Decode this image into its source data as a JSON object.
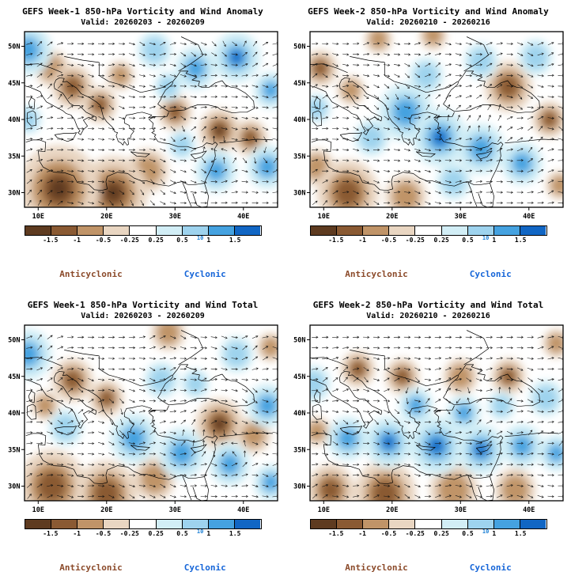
{
  "legend": {
    "anticyclonic": "Anticyclonic",
    "cyclonic": "Cyclonic"
  },
  "chart_data": [
    {
      "type": "heatmap",
      "title": "GEFS Week-1 850-hPa Vorticity and Wind Anomaly",
      "subtitle": "Valid: 20260203 - 20260209",
      "xlim": [
        8,
        45
      ],
      "ylim": [
        28,
        52
      ],
      "lon_ticks": [
        10,
        20,
        30,
        40
      ],
      "lon_tick_labels": [
        "10E",
        "20E",
        "30E",
        "40E"
      ],
      "lat_ticks": [
        30,
        35,
        40,
        45,
        50
      ],
      "lat_tick_labels": [
        "30N",
        "35N",
        "40N",
        "45N",
        "50N"
      ],
      "grid": false,
      "legend": [
        "Anticyclonic",
        "Cyclonic"
      ],
      "colorbar": {
        "tick_labels": [
          "-1.5",
          "-1",
          "-0.5",
          "-0.25",
          "0.25",
          "0.5",
          "1",
          "1.5"
        ],
        "scale_label": "10",
        "colors": [
          "#5e3b20",
          "#8a5a33",
          "#c09468",
          "#e9d6c2",
          "#ffffff",
          "#d2eef6",
          "#9ed3ee",
          "#45a2e0",
          "#1166c4"
        ]
      },
      "wind": {
        "style": "arrow-grid",
        "base_flow": "westerly"
      },
      "vorticity_centers": [
        {
          "lon": 13,
          "lat": 30.5,
          "radius_deg": 6,
          "intensity": 1.0,
          "rotation": "anticyclonic"
        },
        {
          "lon": 21,
          "lat": 30,
          "radius_deg": 5,
          "intensity": 0.9,
          "rotation": "anticyclonic"
        },
        {
          "lon": 26,
          "lat": 33,
          "radius_deg": 3,
          "intensity": 0.6,
          "rotation": "anticyclonic"
        },
        {
          "lon": 15,
          "lat": 44.5,
          "radius_deg": 3,
          "intensity": 0.85,
          "rotation": "anticyclonic"
        },
        {
          "lon": 19,
          "lat": 42,
          "radius_deg": 2.5,
          "intensity": 0.75,
          "rotation": "anticyclonic"
        },
        {
          "lon": 12,
          "lat": 47,
          "radius_deg": 2.5,
          "intensity": 0.6,
          "rotation": "anticyclonic"
        },
        {
          "lon": 22,
          "lat": 46,
          "radius_deg": 2,
          "intensity": 0.5,
          "rotation": "anticyclonic"
        },
        {
          "lon": 30,
          "lat": 41,
          "radius_deg": 2.5,
          "intensity": 0.7,
          "rotation": "anticyclonic"
        },
        {
          "lon": 36.5,
          "lat": 38.5,
          "radius_deg": 3,
          "intensity": 0.9,
          "rotation": "anticyclonic"
        },
        {
          "lon": 41,
          "lat": 37.5,
          "radius_deg": 2.5,
          "intensity": 0.7,
          "rotation": "anticyclonic"
        },
        {
          "lon": 8.5,
          "lat": 49.5,
          "radius_deg": 3.5,
          "intensity": 0.85,
          "rotation": "cyclonic"
        },
        {
          "lon": 8.5,
          "lat": 40,
          "radius_deg": 2,
          "intensity": 0.5,
          "rotation": "cyclonic"
        },
        {
          "lon": 27,
          "lat": 49.5,
          "radius_deg": 2.5,
          "intensity": 0.55,
          "rotation": "cyclonic"
        },
        {
          "lon": 33,
          "lat": 47,
          "radius_deg": 3,
          "intensity": 0.7,
          "rotation": "cyclonic"
        },
        {
          "lon": 39,
          "lat": 48.5,
          "radius_deg": 3.5,
          "intensity": 0.9,
          "rotation": "cyclonic"
        },
        {
          "lon": 44,
          "lat": 44,
          "radius_deg": 2.5,
          "intensity": 0.7,
          "rotation": "cyclonic"
        },
        {
          "lon": 43.5,
          "lat": 33.5,
          "radius_deg": 3,
          "intensity": 0.85,
          "rotation": "cyclonic"
        },
        {
          "lon": 36,
          "lat": 33,
          "radius_deg": 3,
          "intensity": 0.75,
          "rotation": "cyclonic"
        },
        {
          "lon": 31,
          "lat": 36.5,
          "radius_deg": 2,
          "intensity": 0.6,
          "rotation": "cyclonic"
        },
        {
          "lon": 29,
          "lat": 44.5,
          "radius_deg": 2,
          "intensity": 0.5,
          "rotation": "cyclonic"
        }
      ]
    },
    {
      "type": "heatmap",
      "title": "GEFS Week-2 850-hPa Vorticity and Wind Anomaly",
      "subtitle": "Valid: 20260210 - 20260216",
      "xlim": [
        8,
        45
      ],
      "ylim": [
        28,
        52
      ],
      "lon_ticks": [
        10,
        20,
        30,
        40
      ],
      "lon_tick_labels": [
        "10E",
        "20E",
        "30E",
        "40E"
      ],
      "lat_ticks": [
        30,
        35,
        40,
        45,
        50
      ],
      "lat_tick_labels": [
        "30N",
        "35N",
        "40N",
        "45N",
        "50N"
      ],
      "grid": false,
      "legend": [
        "Anticyclonic",
        "Cyclonic"
      ],
      "colorbar": {
        "tick_labels": [
          "-1.5",
          "-1",
          "-0.5",
          "-0.25",
          "0.25",
          "0.5",
          "1",
          "1.5"
        ],
        "scale_label": "10",
        "colors": [
          "#5e3b20",
          "#8a5a33",
          "#c09468",
          "#e9d6c2",
          "#ffffff",
          "#d2eef6",
          "#9ed3ee",
          "#45a2e0",
          "#1166c4"
        ]
      },
      "wind": {
        "style": "arrow-grid",
        "base_flow": "westerly"
      },
      "vorticity_centers": [
        {
          "lon": 9.5,
          "lat": 47,
          "radius_deg": 2.5,
          "intensity": 0.7,
          "rotation": "anticyclonic"
        },
        {
          "lon": 14,
          "lat": 44,
          "radius_deg": 2,
          "intensity": 0.5,
          "rotation": "anticyclonic"
        },
        {
          "lon": 13.5,
          "lat": 30,
          "radius_deg": 4.5,
          "intensity": 0.8,
          "rotation": "anticyclonic"
        },
        {
          "lon": 9,
          "lat": 33.5,
          "radius_deg": 2.5,
          "intensity": 0.6,
          "rotation": "anticyclonic"
        },
        {
          "lon": 22,
          "lat": 29.5,
          "radius_deg": 3,
          "intensity": 0.5,
          "rotation": "anticyclonic"
        },
        {
          "lon": 37,
          "lat": 44.5,
          "radius_deg": 3.5,
          "intensity": 0.85,
          "rotation": "anticyclonic"
        },
        {
          "lon": 43,
          "lat": 40,
          "radius_deg": 2.5,
          "intensity": 0.65,
          "rotation": "anticyclonic"
        },
        {
          "lon": 44.5,
          "lat": 31,
          "radius_deg": 2,
          "intensity": 0.5,
          "rotation": "anticyclonic"
        },
        {
          "lon": 26,
          "lat": 51.5,
          "radius_deg": 2,
          "intensity": 0.45,
          "rotation": "anticyclonic"
        },
        {
          "lon": 18,
          "lat": 51,
          "radius_deg": 2,
          "intensity": 0.4,
          "rotation": "anticyclonic"
        },
        {
          "lon": 22,
          "lat": 41,
          "radius_deg": 4,
          "intensity": 0.85,
          "rotation": "cyclonic"
        },
        {
          "lon": 27,
          "lat": 37.5,
          "radius_deg": 4,
          "intensity": 0.9,
          "rotation": "cyclonic"
        },
        {
          "lon": 33,
          "lat": 36,
          "radius_deg": 3.5,
          "intensity": 0.85,
          "rotation": "cyclonic"
        },
        {
          "lon": 39,
          "lat": 34,
          "radius_deg": 3,
          "intensity": 0.7,
          "rotation": "cyclonic"
        },
        {
          "lon": 17,
          "lat": 37.5,
          "radius_deg": 2.5,
          "intensity": 0.6,
          "rotation": "cyclonic"
        },
        {
          "lon": 29,
          "lat": 31.5,
          "radius_deg": 2.5,
          "intensity": 0.55,
          "rotation": "cyclonic"
        },
        {
          "lon": 9,
          "lat": 41.5,
          "radius_deg": 2,
          "intensity": 0.5,
          "rotation": "cyclonic"
        },
        {
          "lon": 33,
          "lat": 48,
          "radius_deg": 2.5,
          "intensity": 0.55,
          "rotation": "cyclonic"
        },
        {
          "lon": 41,
          "lat": 48.5,
          "radius_deg": 2.5,
          "intensity": 0.6,
          "rotation": "cyclonic"
        },
        {
          "lon": 25,
          "lat": 46,
          "radius_deg": 2.5,
          "intensity": 0.6,
          "rotation": "cyclonic"
        }
      ]
    },
    {
      "type": "heatmap",
      "title": "GEFS Week-1 850-hPa Vorticity and Wind Total",
      "subtitle": "Valid: 20260203 - 20260209",
      "xlim": [
        8,
        45
      ],
      "ylim": [
        28,
        52
      ],
      "lon_ticks": [
        10,
        20,
        30,
        40
      ],
      "lon_tick_labels": [
        "10E",
        "20E",
        "30E",
        "40E"
      ],
      "lat_ticks": [
        30,
        35,
        40,
        45,
        50
      ],
      "lat_tick_labels": [
        "30N",
        "35N",
        "40N",
        "45N",
        "50N"
      ],
      "grid": false,
      "legend": [
        "Anticyclonic",
        "Cyclonic"
      ],
      "colorbar": {
        "tick_labels": [
          "-1.5",
          "-1",
          "-0.5",
          "-0.25",
          "0.25",
          "0.5",
          "1",
          "1.5"
        ],
        "scale_label": "10",
        "colors": [
          "#5e3b20",
          "#8a5a33",
          "#c09468",
          "#e9d6c2",
          "#ffffff",
          "#d2eef6",
          "#9ed3ee",
          "#45a2e0",
          "#1166c4"
        ]
      },
      "wind": {
        "style": "arrow-grid",
        "base_flow": "westerly"
      },
      "vorticity_centers": [
        {
          "lon": 12,
          "lat": 30,
          "radius_deg": 5,
          "intensity": 0.85,
          "rotation": "anticyclonic"
        },
        {
          "lon": 20,
          "lat": 29,
          "radius_deg": 4.5,
          "intensity": 0.75,
          "rotation": "anticyclonic"
        },
        {
          "lon": 27,
          "lat": 31,
          "radius_deg": 3,
          "intensity": 0.5,
          "rotation": "anticyclonic"
        },
        {
          "lon": 15,
          "lat": 44.5,
          "radius_deg": 3,
          "intensity": 0.85,
          "rotation": "anticyclonic"
        },
        {
          "lon": 20,
          "lat": 42,
          "radius_deg": 2.5,
          "intensity": 0.7,
          "rotation": "anticyclonic"
        },
        {
          "lon": 29,
          "lat": 51,
          "radius_deg": 2.5,
          "intensity": 0.55,
          "rotation": "anticyclonic"
        },
        {
          "lon": 36.5,
          "lat": 38.5,
          "radius_deg": 3.5,
          "intensity": 0.9,
          "rotation": "anticyclonic"
        },
        {
          "lon": 41.5,
          "lat": 37,
          "radius_deg": 2.5,
          "intensity": 0.6,
          "rotation": "anticyclonic"
        },
        {
          "lon": 44,
          "lat": 49,
          "radius_deg": 2,
          "intensity": 0.5,
          "rotation": "anticyclonic"
        },
        {
          "lon": 11,
          "lat": 41,
          "radius_deg": 2,
          "intensity": 0.5,
          "rotation": "anticyclonic"
        },
        {
          "lon": 8.5,
          "lat": 48,
          "radius_deg": 3.5,
          "intensity": 0.8,
          "rotation": "cyclonic"
        },
        {
          "lon": 14,
          "lat": 38,
          "radius_deg": 2.5,
          "intensity": 0.6,
          "rotation": "cyclonic"
        },
        {
          "lon": 24,
          "lat": 36.5,
          "radius_deg": 3.5,
          "intensity": 0.8,
          "rotation": "cyclonic"
        },
        {
          "lon": 31,
          "lat": 34.5,
          "radius_deg": 3.5,
          "intensity": 0.85,
          "rotation": "cyclonic"
        },
        {
          "lon": 38,
          "lat": 33,
          "radius_deg": 3,
          "intensity": 0.8,
          "rotation": "cyclonic"
        },
        {
          "lon": 43.5,
          "lat": 41,
          "radius_deg": 3,
          "intensity": 0.75,
          "rotation": "cyclonic"
        },
        {
          "lon": 28,
          "lat": 44.5,
          "radius_deg": 2.5,
          "intensity": 0.55,
          "rotation": "cyclonic"
        },
        {
          "lon": 39,
          "lat": 48,
          "radius_deg": 2.5,
          "intensity": 0.6,
          "rotation": "cyclonic"
        },
        {
          "lon": 44,
          "lat": 30.5,
          "radius_deg": 2.5,
          "intensity": 0.65,
          "rotation": "cyclonic"
        },
        {
          "lon": 33,
          "lat": 44,
          "radius_deg": 2,
          "intensity": 0.5,
          "rotation": "cyclonic"
        }
      ]
    },
    {
      "type": "heatmap",
      "title": "GEFS Week-2 850-hPa Vorticity and Wind Total",
      "subtitle": "Valid: 20260210 - 20260216",
      "xlim": [
        8,
        45
      ],
      "ylim": [
        28,
        52
      ],
      "lon_ticks": [
        10,
        20,
        30,
        40
      ],
      "lon_tick_labels": [
        "10E",
        "20E",
        "30E",
        "40E"
      ],
      "lat_ticks": [
        30,
        35,
        40,
        45,
        50
      ],
      "lat_tick_labels": [
        "30N",
        "35N",
        "40N",
        "45N",
        "50N"
      ],
      "grid": false,
      "legend": [
        "Anticyclonic",
        "Cyclonic"
      ],
      "colorbar": {
        "tick_labels": [
          "-1.5",
          "-1",
          "-0.5",
          "-0.25",
          "0.25",
          "0.5",
          "1",
          "1.5"
        ],
        "scale_label": "10",
        "colors": [
          "#5e3b20",
          "#8a5a33",
          "#c09468",
          "#e9d6c2",
          "#ffffff",
          "#d2eef6",
          "#9ed3ee",
          "#45a2e0",
          "#1166c4"
        ]
      },
      "wind": {
        "style": "arrow-grid",
        "base_flow": "westerly"
      },
      "vorticity_centers": [
        {
          "lon": 11,
          "lat": 29.5,
          "radius_deg": 3.5,
          "intensity": 0.7,
          "rotation": "anticyclonic"
        },
        {
          "lon": 19,
          "lat": 29,
          "radius_deg": 4.5,
          "intensity": 0.8,
          "rotation": "anticyclonic"
        },
        {
          "lon": 29,
          "lat": 29.5,
          "radius_deg": 3.5,
          "intensity": 0.6,
          "rotation": "anticyclonic"
        },
        {
          "lon": 38,
          "lat": 29.5,
          "radius_deg": 3,
          "intensity": 0.5,
          "rotation": "anticyclonic"
        },
        {
          "lon": 15,
          "lat": 46,
          "radius_deg": 2.5,
          "intensity": 0.8,
          "rotation": "anticyclonic"
        },
        {
          "lon": 21.5,
          "lat": 45,
          "radius_deg": 2.5,
          "intensity": 0.7,
          "rotation": "anticyclonic"
        },
        {
          "lon": 30,
          "lat": 45,
          "radius_deg": 2.5,
          "intensity": 0.6,
          "rotation": "anticyclonic"
        },
        {
          "lon": 37,
          "lat": 45,
          "radius_deg": 2.5,
          "intensity": 0.7,
          "rotation": "anticyclonic"
        },
        {
          "lon": 44,
          "lat": 49.5,
          "radius_deg": 2,
          "intensity": 0.5,
          "rotation": "anticyclonic"
        },
        {
          "lon": 9,
          "lat": 37.5,
          "radius_deg": 2,
          "intensity": 0.5,
          "rotation": "anticyclonic"
        },
        {
          "lon": 13.5,
          "lat": 36.5,
          "radius_deg": 3,
          "intensity": 0.75,
          "rotation": "cyclonic"
        },
        {
          "lon": 19.5,
          "lat": 36,
          "radius_deg": 3.5,
          "intensity": 0.9,
          "rotation": "cyclonic"
        },
        {
          "lon": 26.5,
          "lat": 35.5,
          "radius_deg": 4,
          "intensity": 1.0,
          "rotation": "cyclonic"
        },
        {
          "lon": 33,
          "lat": 35,
          "radius_deg": 3.5,
          "intensity": 0.9,
          "rotation": "cyclonic"
        },
        {
          "lon": 39,
          "lat": 35.5,
          "radius_deg": 3,
          "intensity": 0.8,
          "rotation": "cyclonic"
        },
        {
          "lon": 44,
          "lat": 34.5,
          "radius_deg": 2.5,
          "intensity": 0.7,
          "rotation": "cyclonic"
        },
        {
          "lon": 23.5,
          "lat": 41,
          "radius_deg": 2.5,
          "intensity": 0.65,
          "rotation": "cyclonic"
        },
        {
          "lon": 30.5,
          "lat": 40,
          "radius_deg": 2.5,
          "intensity": 0.7,
          "rotation": "cyclonic"
        },
        {
          "lon": 8.5,
          "lat": 44,
          "radius_deg": 2.5,
          "intensity": 0.6,
          "rotation": "cyclonic"
        },
        {
          "lon": 42.5,
          "lat": 42,
          "radius_deg": 2.5,
          "intensity": 0.55,
          "rotation": "cyclonic"
        },
        {
          "lon": 36,
          "lat": 41,
          "radius_deg": 2,
          "intensity": 0.5,
          "rotation": "cyclonic"
        }
      ]
    }
  ]
}
